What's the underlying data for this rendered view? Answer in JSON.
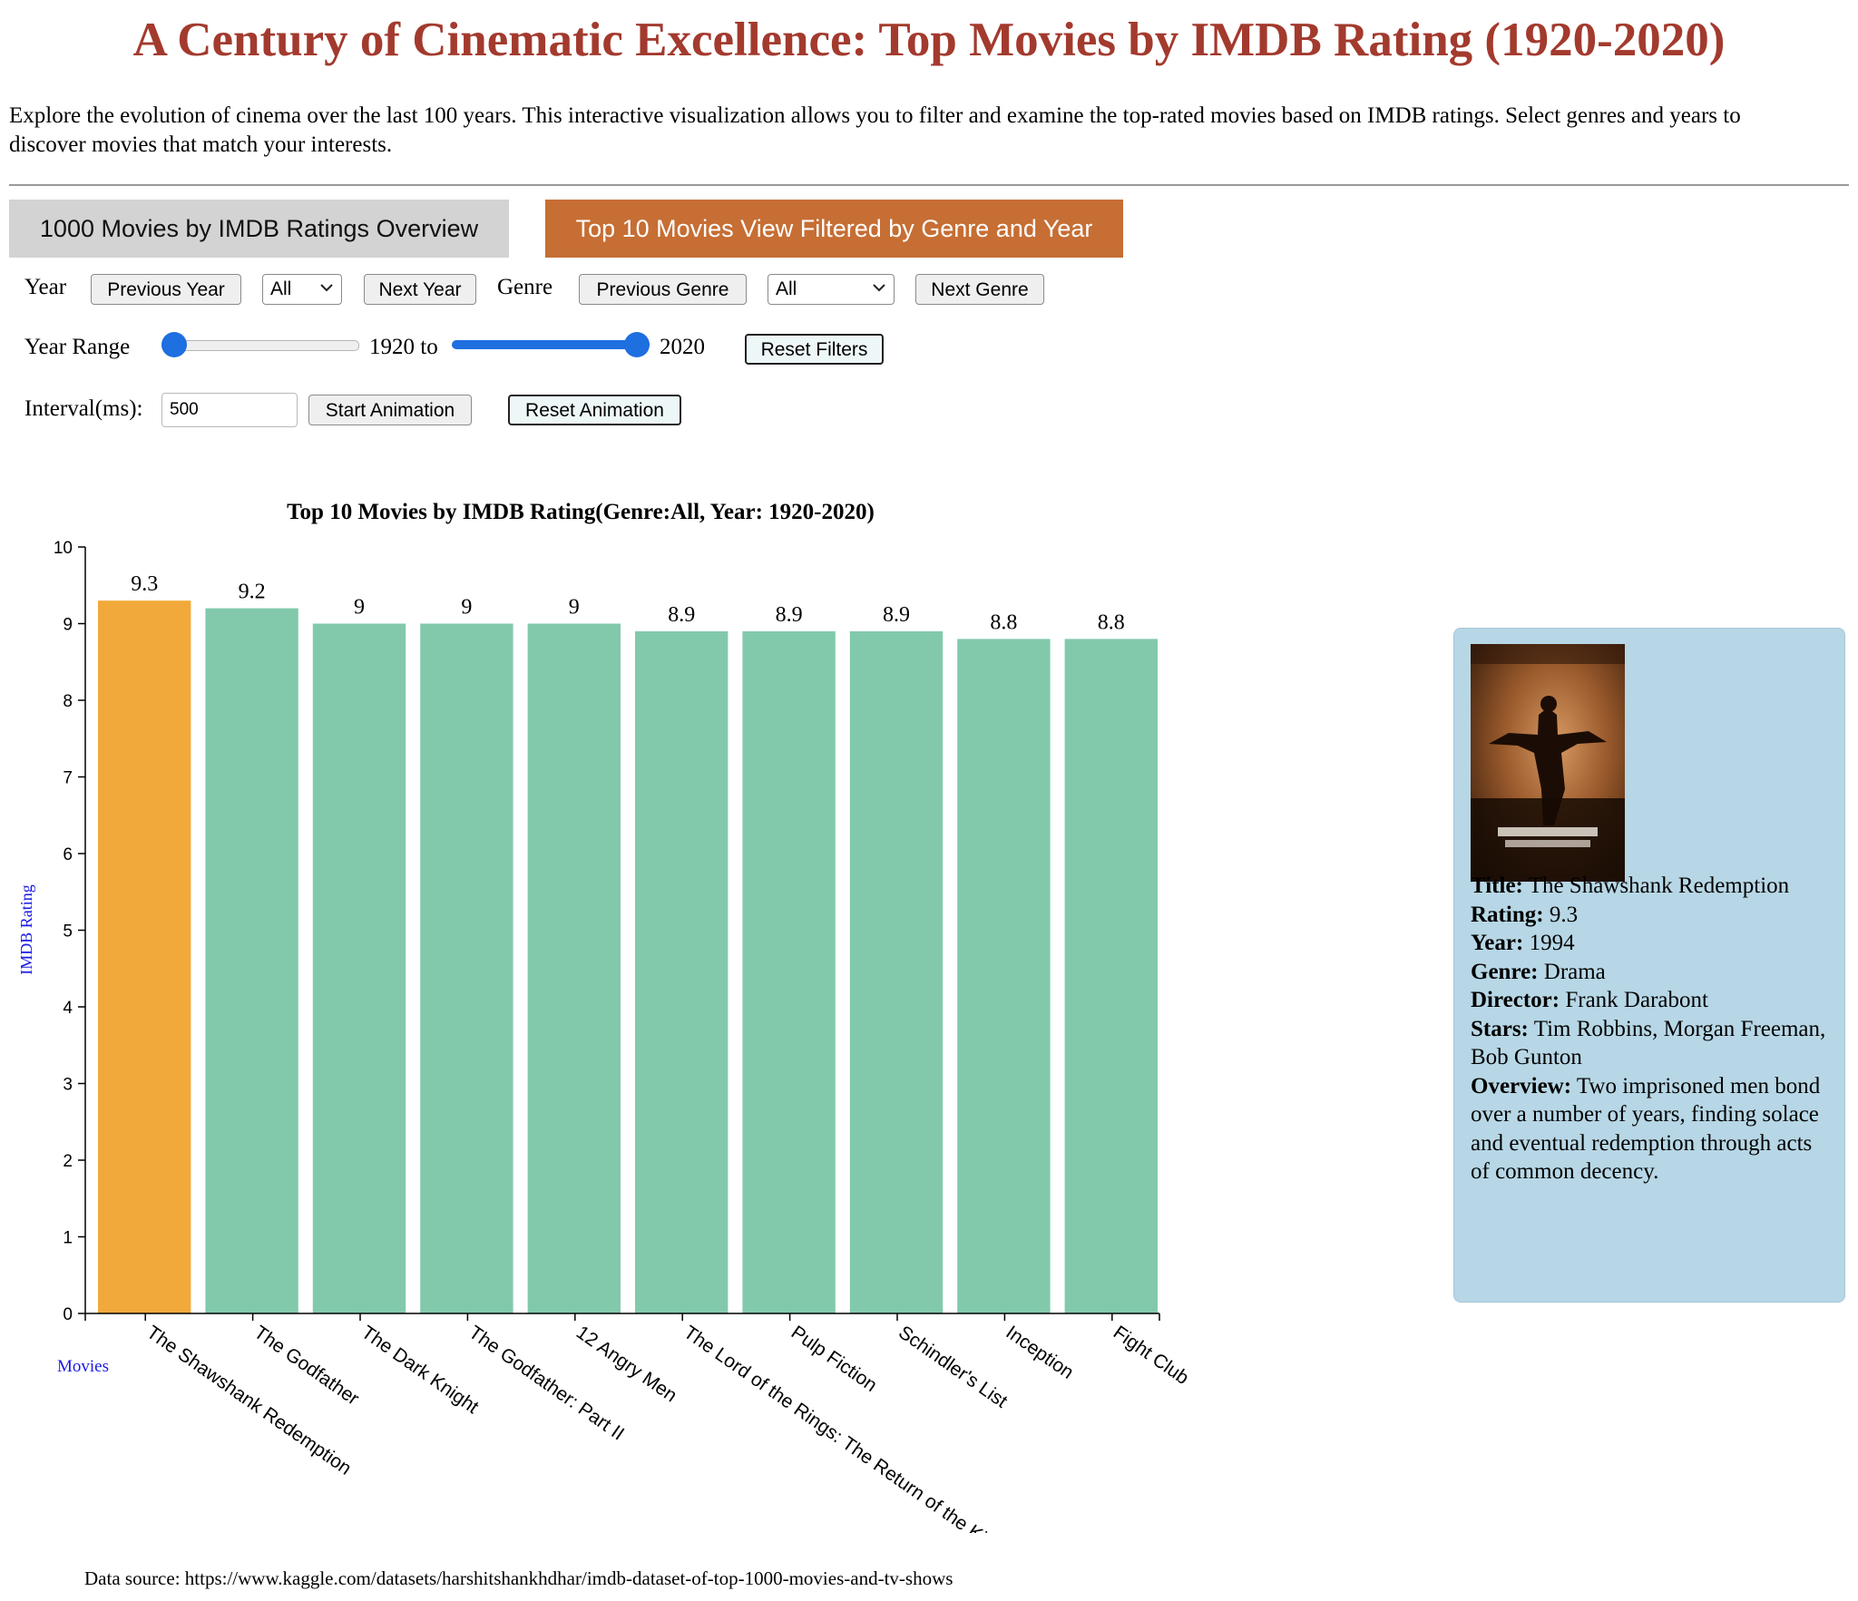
{
  "page": {
    "title": "A Century of Cinematic Excellence: Top Movies by IMDB Rating (1920-2020)",
    "intro": "Explore the evolution of cinema over the last 100 years. This interactive visualization allows you to filter and examine the top-rated movies based on IMDB ratings. Select genres and years to discover movies that match your interests.",
    "data_source": "Data source: https://www.kaggle.com/datasets/harshitshankhdhar/imdb-dataset-of-top-1000-movies-and-tv-shows"
  },
  "tabs": {
    "overview": "1000 Movies by IMDB Ratings Overview",
    "top10": "Top 10 Movies View Filtered by Genre and Year"
  },
  "controls": {
    "year_label": "Year",
    "previous_year": "Previous Year",
    "year_value": "All",
    "next_year": "Next Year",
    "genre_label": "Genre",
    "previous_genre": "Previous Genre",
    "genre_value": "All",
    "next_genre": "Next Genre",
    "year_range_label": "Year Range",
    "range_from_text": "1920 to",
    "range_to_text": "2020",
    "range_from_fraction": 0.0,
    "range_to_fraction": 1.0,
    "reset_filters": "Reset Filters",
    "interval_label": "Interval(ms):",
    "interval_value": "500",
    "start_animation": "Start Animation",
    "reset_animation": "Reset Animation"
  },
  "colors": {
    "title": "#a33a2e",
    "active_tab": "#c66e34",
    "inactive_tab": "#d3d3d3",
    "bar_default": "#82c9ac",
    "bar_selected": "#f2a93b",
    "axis_label": "#1a1ae6",
    "slider": "#1e6fe0",
    "info_panel": "#b7d7e6"
  },
  "chart_data": {
    "type": "bar",
    "title": "Top 10 Movies by IMDB Rating(Genre:All, Year: 1920-2020)",
    "xlabel": "Movies",
    "ylabel": "IMDB Rating",
    "ylim": [
      0,
      10
    ],
    "yticks": [
      0,
      1,
      2,
      3,
      4,
      5,
      6,
      7,
      8,
      9,
      10
    ],
    "categories": [
      "The Shawshank Redemption",
      "The Godfather",
      "The Dark Knight",
      "The Godfather: Part II",
      "12 Angry Men",
      "The Lord of the Rings: The Return of the King",
      "Pulp Fiction",
      "Schindler's List",
      "Inception",
      "Fight Club"
    ],
    "values": [
      9.3,
      9.2,
      9.0,
      9.0,
      9.0,
      8.9,
      8.9,
      8.9,
      8.8,
      8.8
    ],
    "value_labels": [
      "9.3",
      "9.2",
      "9",
      "9",
      "9",
      "8.9",
      "8.9",
      "8.9",
      "8.8",
      "8.8"
    ],
    "selected_index": 0
  },
  "details": {
    "title_label": "Title:",
    "title": "The Shawshank Redemption",
    "rating_label": "Rating:",
    "rating": "9.3",
    "year_label": "Year:",
    "year": "1994",
    "genre_label": "Genre:",
    "genre": "Drama",
    "director_label": "Director:",
    "director": "Frank Darabont",
    "stars_label": "Stars:",
    "stars": "Tim Robbins, Morgan Freeman, Bob Gunton",
    "overview_label": "Overview:",
    "overview": "Two imprisoned men bond over a number of years, finding solace and eventual redemption through acts of common decency."
  }
}
